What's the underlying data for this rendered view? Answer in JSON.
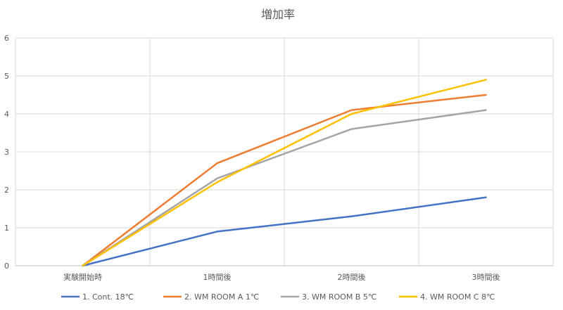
{
  "chart_data": {
    "type": "line",
    "title": "増加率",
    "xlabel": "",
    "ylabel": "",
    "categories": [
      "実験開始時",
      "1時間後",
      "2時間後",
      "3時間後"
    ],
    "ylim": [
      0,
      6
    ],
    "yticks": [
      0,
      1,
      2,
      3,
      4,
      5,
      6
    ],
    "grid": true,
    "legend_position": "bottom",
    "series": [
      {
        "name": "1. Cont. 18℃",
        "color": "#4472c4",
        "values": [
          0,
          0.9,
          1.3,
          1.8
        ]
      },
      {
        "name": "2. WM ROOM A 1℃",
        "color": "#ed7d31",
        "values": [
          0,
          2.7,
          4.1,
          4.5
        ]
      },
      {
        "name": "3. WM ROOM B 5℃",
        "color": "#a5a5a5",
        "values": [
          0,
          2.3,
          3.6,
          4.1
        ]
      },
      {
        "name": "4. WM ROOM C 8℃",
        "color": "#ffc000",
        "values": [
          0,
          2.2,
          4.0,
          4.9
        ]
      }
    ]
  }
}
